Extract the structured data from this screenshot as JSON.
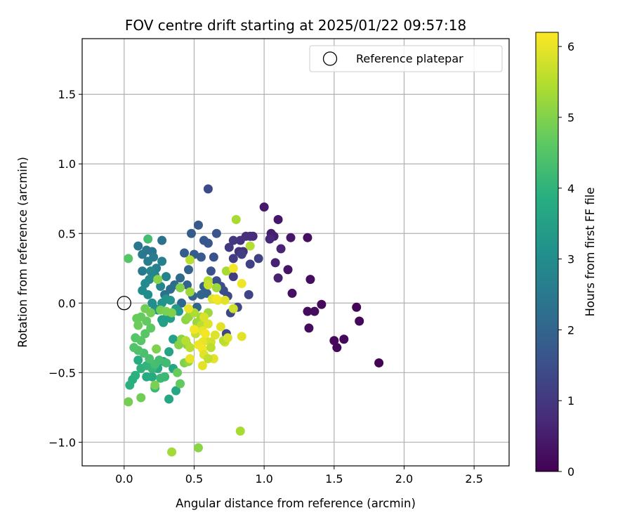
{
  "chart_data": {
    "type": "scatter",
    "title": "FOV centre drift starting at 2025/01/22 09:57:18",
    "xlabel": "Angular distance from reference (arcmin)",
    "ylabel": "Rotation from reference (arcmin)",
    "xlim": [
      -0.3,
      2.75
    ],
    "ylim": [
      -1.17,
      1.9
    ],
    "xticks": [
      0.0,
      0.5,
      1.0,
      1.5,
      2.0,
      2.5
    ],
    "xtick_labels": [
      "0.0",
      "0.5",
      "1.0",
      "1.5",
      "2.0",
      "2.5"
    ],
    "yticks": [
      -1.0,
      -0.5,
      0.0,
      0.5,
      1.0,
      1.5
    ],
    "ytick_labels": [
      "−1.0",
      "−0.5",
      "0.0",
      "0.5",
      "1.0",
      "1.5"
    ],
    "grid": true,
    "legend": {
      "position": "top-right",
      "entries": [
        "Reference platepar"
      ]
    },
    "reference_point": {
      "x": 0.0,
      "y": 0.0,
      "label": "Reference platepar"
    },
    "colorbar": {
      "label": "Hours from first FF file",
      "range": [
        0,
        6.2
      ],
      "ticks": [
        0,
        1,
        2,
        3,
        4,
        5,
        6
      ],
      "tick_labels": [
        "0",
        "1",
        "2",
        "3",
        "4",
        "5",
        "6"
      ],
      "colormap": "viridis"
    },
    "series": [
      {
        "point_fields": [
          "x",
          "y",
          "hours"
        ],
        "points": [
          [
            1.82,
            -0.43,
            0.05
          ],
          [
            1.66,
            -0.03,
            0.08
          ],
          [
            1.68,
            -0.13,
            0.1
          ],
          [
            1.57,
            -0.26,
            0.1
          ],
          [
            1.52,
            -0.32,
            0.12
          ],
          [
            1.5,
            -0.27,
            0.13
          ],
          [
            1.41,
            -0.01,
            0.15
          ],
          [
            1.36,
            -0.06,
            0.18
          ],
          [
            1.31,
            -0.06,
            0.18
          ],
          [
            1.32,
            -0.18,
            0.2
          ],
          [
            1.33,
            0.17,
            0.22
          ],
          [
            1.31,
            0.47,
            0.25
          ],
          [
            1.2,
            0.07,
            0.3
          ],
          [
            1.17,
            0.24,
            0.35
          ],
          [
            1.19,
            0.47,
            0.4
          ],
          [
            1.1,
            0.6,
            0.4
          ],
          [
            1.0,
            0.69,
            0.45
          ],
          [
            1.05,
            0.5,
            0.5
          ],
          [
            1.07,
            0.48,
            0.55
          ],
          [
            1.08,
            0.29,
            0.6
          ],
          [
            1.1,
            0.18,
            0.6
          ],
          [
            1.12,
            0.39,
            0.65
          ],
          [
            1.04,
            0.46,
            0.7
          ],
          [
            0.92,
            0.48,
            0.75
          ],
          [
            0.9,
            0.48,
            0.8
          ],
          [
            0.87,
            0.48,
            0.85
          ],
          [
            0.83,
            0.45,
            0.9
          ],
          [
            0.85,
            0.37,
            0.9
          ],
          [
            0.82,
            0.37,
            0.95
          ],
          [
            0.78,
            0.45,
            1.0
          ],
          [
            0.75,
            0.4,
            1.05
          ],
          [
            0.78,
            0.32,
            1.1
          ],
          [
            0.78,
            0.19,
            1.1
          ],
          [
            0.84,
            0.35,
            1.15
          ],
          [
            0.9,
            0.28,
            1.2
          ],
          [
            0.96,
            0.32,
            1.2
          ],
          [
            0.89,
            0.06,
            1.25
          ],
          [
            0.81,
            -0.03,
            1.3
          ],
          [
            0.76,
            -0.07,
            1.35
          ],
          [
            0.73,
            -0.22,
            1.35
          ],
          [
            0.74,
            0.05,
            1.4
          ],
          [
            0.71,
            0.09,
            1.45
          ],
          [
            0.69,
            0.12,
            1.5
          ],
          [
            0.66,
            0.16,
            1.55
          ],
          [
            0.62,
            0.23,
            1.6
          ],
          [
            0.64,
            0.33,
            1.6
          ],
          [
            0.66,
            0.5,
            1.65
          ],
          [
            0.6,
            0.43,
            1.7
          ],
          [
            0.57,
            0.45,
            1.7
          ],
          [
            0.53,
            0.56,
            1.75
          ],
          [
            0.6,
            0.82,
            1.4
          ],
          [
            0.55,
            0.33,
            1.8
          ],
          [
            0.5,
            0.35,
            1.85
          ],
          [
            0.48,
            0.5,
            1.85
          ],
          [
            0.43,
            0.36,
            1.9
          ],
          [
            0.46,
            0.24,
            1.95
          ],
          [
            0.45,
            0.13,
            2.0
          ],
          [
            0.49,
            0.05,
            2.0
          ],
          [
            0.57,
            0.12,
            1.9
          ],
          [
            0.59,
            0.07,
            1.95
          ],
          [
            0.55,
            0.06,
            2.0
          ],
          [
            0.52,
            -0.03,
            2.05
          ],
          [
            0.47,
            -0.05,
            2.1
          ],
          [
            0.41,
            0.0,
            2.1
          ],
          [
            0.4,
            0.18,
            2.15
          ],
          [
            0.36,
            0.13,
            2.2
          ],
          [
            0.33,
            0.1,
            2.25
          ],
          [
            0.29,
            0.06,
            2.3
          ],
          [
            0.27,
            0.45,
            2.35
          ],
          [
            0.2,
            0.37,
            2.4
          ],
          [
            0.16,
            0.38,
            2.45
          ],
          [
            0.1,
            0.41,
            2.45
          ],
          [
            0.13,
            0.35,
            2.5
          ],
          [
            0.13,
            0.23,
            2.55
          ],
          [
            0.17,
            0.3,
            2.6
          ],
          [
            0.21,
            0.33,
            2.6
          ],
          [
            0.23,
            0.25,
            2.65
          ],
          [
            0.27,
            0.3,
            2.7
          ],
          [
            0.3,
            0.19,
            2.75
          ],
          [
            0.26,
            0.12,
            2.8
          ],
          [
            0.22,
            0.2,
            2.8
          ],
          [
            0.19,
            0.23,
            2.85
          ],
          [
            0.18,
            0.17,
            2.9
          ],
          [
            0.15,
            0.14,
            2.95
          ],
          [
            0.13,
            0.09,
            3.0
          ],
          [
            0.17,
            0.06,
            3.0
          ],
          [
            0.2,
            0.0,
            3.05
          ],
          [
            0.22,
            -0.04,
            3.1
          ],
          [
            0.24,
            -0.05,
            3.15
          ],
          [
            0.27,
            0.0,
            3.15
          ],
          [
            0.3,
            0.03,
            3.2
          ],
          [
            0.33,
            0.02,
            3.25
          ],
          [
            0.37,
            -0.04,
            3.3
          ],
          [
            0.39,
            -0.06,
            3.35
          ],
          [
            0.31,
            -0.09,
            3.4
          ],
          [
            0.27,
            -0.12,
            3.45
          ],
          [
            0.28,
            -0.14,
            3.5
          ],
          [
            0.33,
            -0.11,
            3.5
          ],
          [
            0.35,
            -0.26,
            3.55
          ],
          [
            0.32,
            -0.35,
            3.6
          ],
          [
            0.28,
            -0.42,
            3.6
          ],
          [
            0.35,
            -0.47,
            3.65
          ],
          [
            0.37,
            -0.63,
            3.7
          ],
          [
            0.32,
            -0.69,
            3.7
          ],
          [
            0.24,
            -0.47,
            3.75
          ],
          [
            0.2,
            -0.53,
            3.8
          ],
          [
            0.16,
            -0.53,
            3.8
          ],
          [
            0.1,
            -0.41,
            3.85
          ],
          [
            0.06,
            -0.55,
            3.9
          ],
          [
            0.04,
            -0.59,
            3.95
          ],
          [
            0.08,
            -0.52,
            3.95
          ],
          [
            0.12,
            -0.47,
            4.0
          ],
          [
            0.16,
            -0.45,
            4.05
          ],
          [
            0.2,
            -0.47,
            4.1
          ],
          [
            0.22,
            -0.61,
            4.15
          ],
          [
            0.26,
            -0.54,
            4.2
          ],
          [
            0.29,
            -0.53,
            4.2
          ],
          [
            0.3,
            -0.43,
            4.25
          ],
          [
            0.25,
            -0.41,
            4.3
          ],
          [
            0.22,
            -0.44,
            4.35
          ],
          [
            0.18,
            -0.4,
            4.4
          ],
          [
            0.14,
            -0.36,
            4.4
          ],
          [
            0.1,
            -0.34,
            4.45
          ],
          [
            0.07,
            -0.32,
            4.5
          ],
          [
            0.08,
            -0.25,
            4.55
          ],
          [
            0.12,
            -0.27,
            4.6
          ],
          [
            0.15,
            -0.22,
            4.6
          ],
          [
            0.19,
            -0.18,
            4.65
          ],
          [
            0.16,
            -0.13,
            4.7
          ],
          [
            0.12,
            -0.1,
            4.75
          ],
          [
            0.09,
            -0.11,
            4.75
          ],
          [
            0.1,
            -0.16,
            4.8
          ],
          [
            0.15,
            -0.04,
            4.85
          ],
          [
            0.19,
            -0.07,
            4.9
          ],
          [
            0.26,
            -0.05,
            4.9
          ],
          [
            0.3,
            -0.06,
            4.95
          ],
          [
            0.34,
            -0.07,
            5.0
          ],
          [
            0.4,
            -0.58,
            4.7
          ],
          [
            0.38,
            -0.5,
            4.75
          ],
          [
            0.43,
            -0.43,
            5.0
          ],
          [
            0.39,
            -0.3,
            5.05
          ],
          [
            0.41,
            -0.26,
            5.1
          ],
          [
            0.45,
            -0.3,
            5.15
          ],
          [
            0.46,
            -0.42,
            5.2
          ],
          [
            0.44,
            -0.12,
            5.15
          ],
          [
            0.46,
            -0.1,
            5.2
          ],
          [
            0.52,
            -0.14,
            5.25
          ],
          [
            0.55,
            -0.1,
            5.3
          ],
          [
            0.6,
            -0.07,
            5.3
          ],
          [
            0.03,
            -0.71,
            4.9
          ],
          [
            0.12,
            -0.68,
            4.85
          ],
          [
            0.22,
            -0.59,
            4.95
          ],
          [
            0.23,
            -0.33,
            5.0
          ],
          [
            0.03,
            0.32,
            4.55
          ],
          [
            0.17,
            0.46,
            4.3
          ],
          [
            0.24,
            0.17,
            5.1
          ],
          [
            0.4,
            0.11,
            5.05
          ],
          [
            0.47,
            0.08,
            5.3
          ],
          [
            0.66,
            0.11,
            5.3
          ],
          [
            0.53,
            -1.04,
            5.1
          ],
          [
            0.34,
            -1.07,
            5.35
          ],
          [
            0.83,
            -0.92,
            5.4
          ],
          [
            0.8,
            0.6,
            5.4
          ],
          [
            0.9,
            0.41,
            5.5
          ],
          [
            0.73,
            0.23,
            5.4
          ],
          [
            0.6,
            0.16,
            5.5
          ],
          [
            0.47,
            0.31,
            5.55
          ],
          [
            0.5,
            -0.07,
            5.45
          ],
          [
            0.55,
            -0.16,
            5.6
          ],
          [
            0.51,
            -0.22,
            5.7
          ],
          [
            0.58,
            -0.27,
            5.75
          ],
          [
            0.62,
            -0.28,
            5.8
          ],
          [
            0.65,
            -0.23,
            5.9
          ],
          [
            0.57,
            -0.1,
            5.85
          ],
          [
            0.6,
            -0.15,
            5.9
          ],
          [
            0.56,
            -0.2,
            6.0
          ],
          [
            0.56,
            -0.28,
            6.0
          ],
          [
            0.53,
            -0.3,
            6.05
          ],
          [
            0.56,
            -0.33,
            6.1
          ],
          [
            0.57,
            -0.37,
            5.9
          ],
          [
            0.62,
            -0.32,
            5.6
          ],
          [
            0.56,
            -0.45,
            5.95
          ],
          [
            0.64,
            -0.4,
            5.95
          ],
          [
            0.6,
            -0.4,
            5.65
          ],
          [
            0.69,
            -0.17,
            5.95
          ],
          [
            0.72,
            -0.28,
            5.8
          ],
          [
            0.71,
            -0.27,
            5.55
          ],
          [
            0.74,
            -0.25,
            5.85
          ],
          [
            0.67,
            0.02,
            6.0
          ],
          [
            0.72,
            0.02,
            5.95
          ],
          [
            0.63,
            0.03,
            5.9
          ],
          [
            0.78,
            -0.04,
            5.75
          ],
          [
            0.78,
            0.25,
            6.1
          ],
          [
            0.84,
            0.14,
            6.05
          ],
          [
            0.84,
            -0.24,
            5.95
          ],
          [
            0.66,
            0.03,
            6.1
          ],
          [
            0.46,
            -0.04,
            6.0
          ],
          [
            0.47,
            -0.4,
            6.0
          ],
          [
            0.44,
            -0.27,
            5.55
          ],
          [
            0.47,
            -0.32,
            5.55
          ],
          [
            0.5,
            -0.19,
            6.1
          ],
          [
            0.58,
            -0.22,
            6.1
          ],
          [
            0.6,
            0.13,
            5.7
          ]
        ]
      }
    ]
  }
}
